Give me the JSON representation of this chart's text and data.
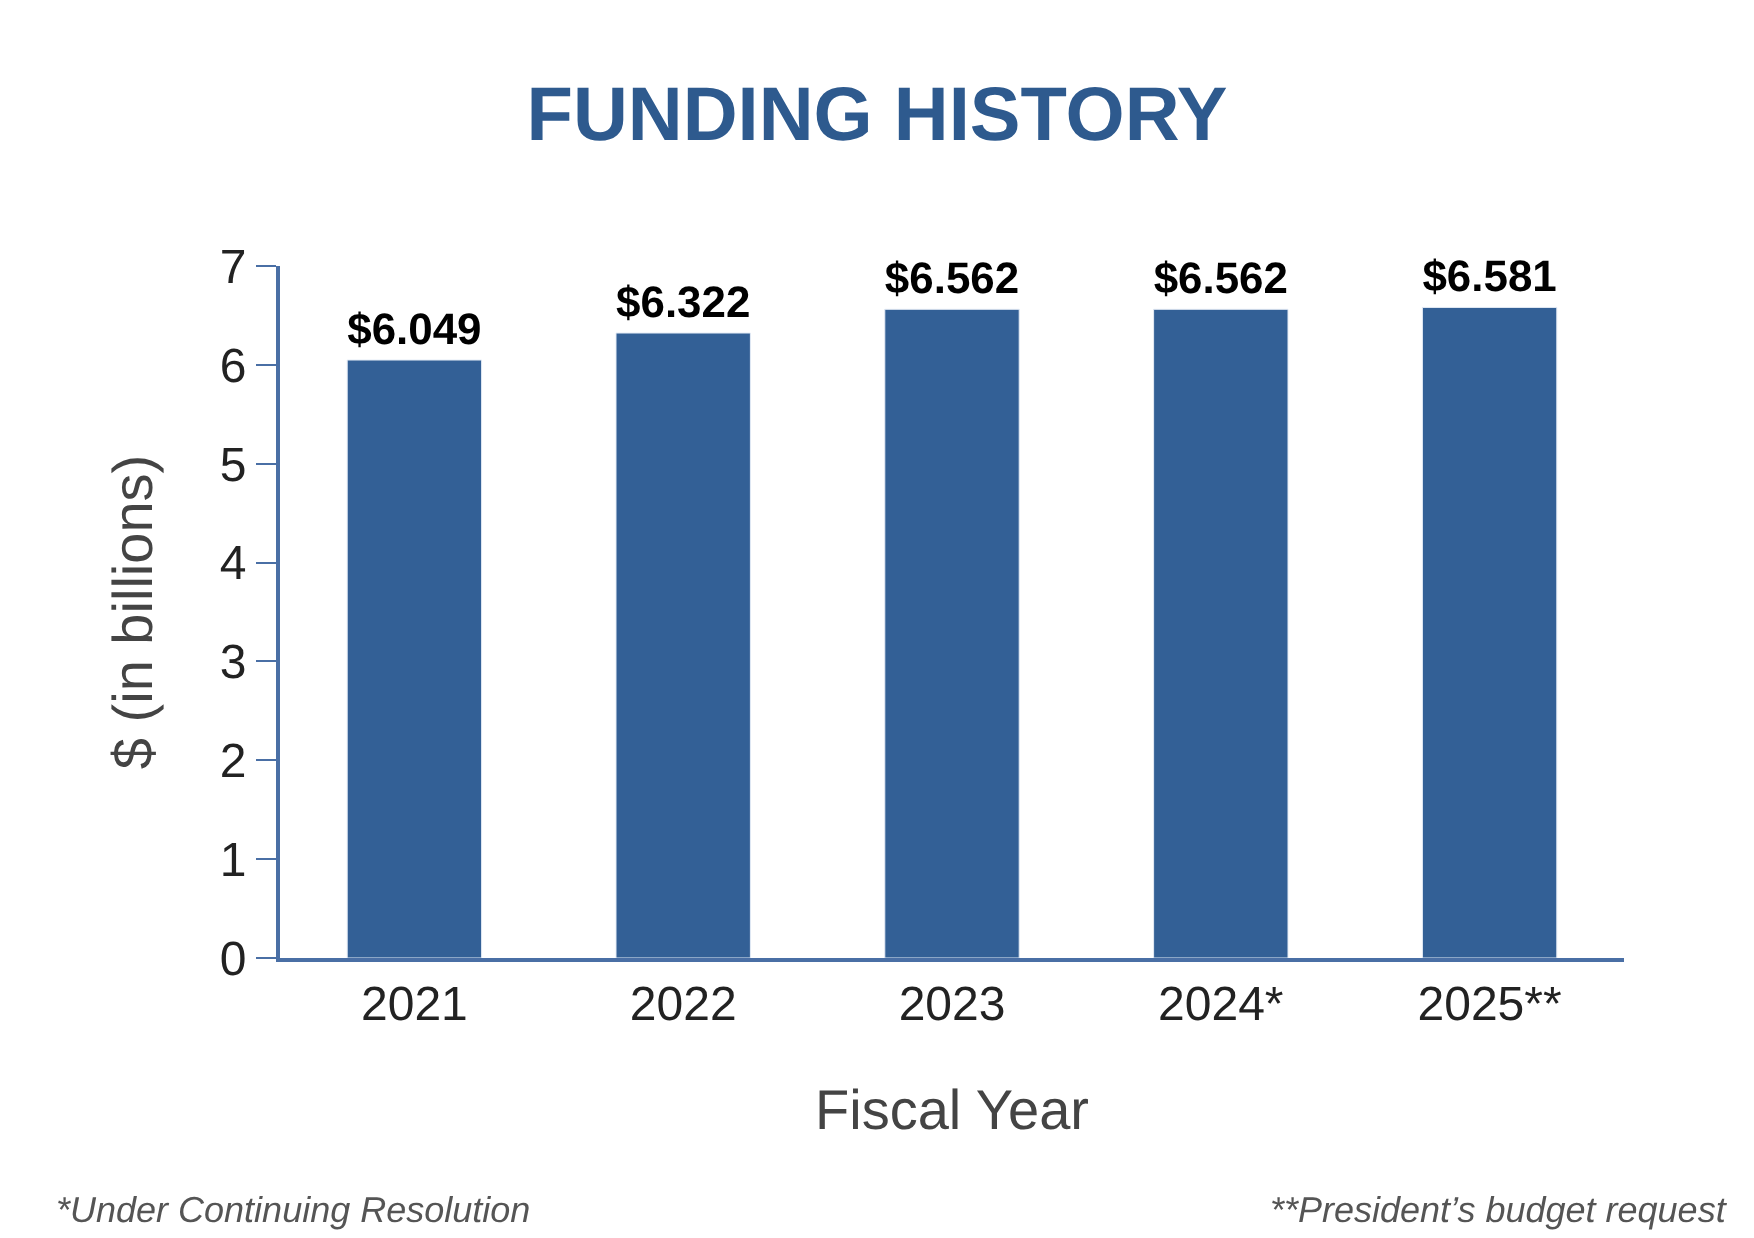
{
  "chart_data": {
    "type": "bar",
    "title": "FUNDING HISTORY",
    "xlabel": "Fiscal Year",
    "ylabel": "$ (in billions)",
    "categories": [
      "2021",
      "2022",
      "2023",
      "2024*",
      "2025**"
    ],
    "values": [
      6.049,
      6.322,
      6.562,
      6.562,
      6.581
    ],
    "value_labels": [
      "$6.049",
      "$6.322",
      "$6.562",
      "$6.562",
      "$6.581"
    ],
    "color": "#336096",
    "ylim": [
      0,
      7
    ],
    "yticks": [
      0,
      1,
      2,
      3,
      4,
      5,
      6,
      7
    ],
    "legend": false,
    "annotations": [
      "*Under Continuing Resolution",
      "**President’s budget request"
    ]
  }
}
